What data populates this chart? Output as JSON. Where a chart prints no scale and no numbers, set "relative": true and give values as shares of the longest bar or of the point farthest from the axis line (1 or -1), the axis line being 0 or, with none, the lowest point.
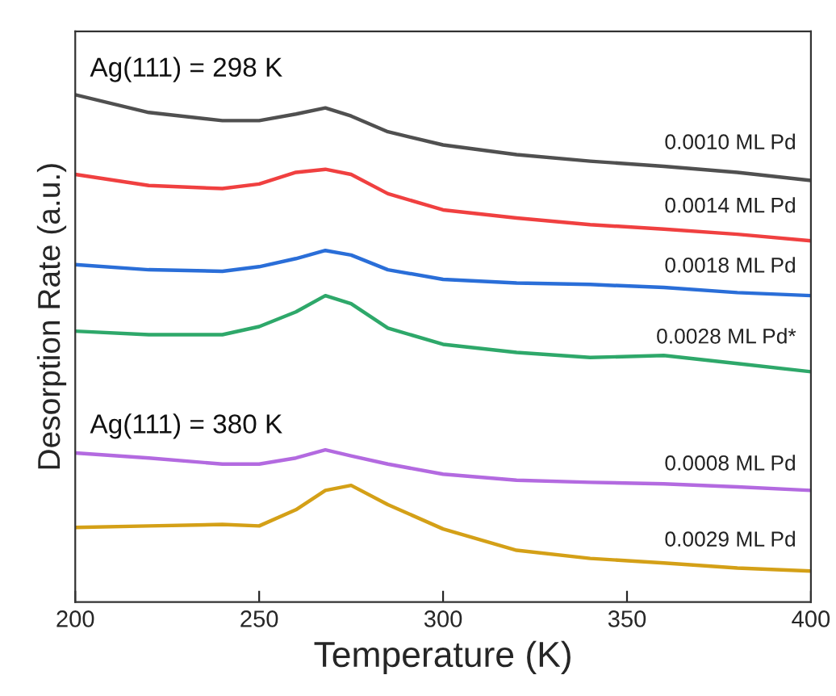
{
  "chart_data": {
    "type": "line",
    "relative": true,
    "xlabel": "Temperature (K)",
    "ylabel": "Desorption Rate (a.u.)",
    "x": [
      200,
      220,
      240,
      250,
      260,
      268,
      275,
      285,
      300,
      320,
      340,
      360,
      380,
      400
    ],
    "xlim": [
      200,
      400
    ],
    "xticks": [
      200,
      250,
      300,
      350,
      400
    ],
    "series": [
      {
        "name": "0.0010 ML Pd",
        "color": "#505050",
        "values": [
          1.0,
          0.965,
          0.949,
          0.949,
          0.962,
          0.974,
          0.958,
          0.927,
          0.901,
          0.882,
          0.869,
          0.859,
          0.847,
          0.831
        ]
      },
      {
        "name": "0.0014 ML Pd",
        "color": "#f04040",
        "values": [
          0.843,
          0.821,
          0.815,
          0.824,
          0.847,
          0.853,
          0.843,
          0.805,
          0.773,
          0.757,
          0.744,
          0.735,
          0.725,
          0.712
        ]
      },
      {
        "name": "0.0018 ML Pd",
        "color": "#2a6ed8",
        "values": [
          0.665,
          0.655,
          0.652,
          0.661,
          0.677,
          0.693,
          0.684,
          0.655,
          0.636,
          0.629,
          0.626,
          0.62,
          0.61,
          0.604
        ]
      },
      {
        "name": "0.0028 ML Pd*",
        "color": "#2ea86a",
        "values": [
          0.534,
          0.527,
          0.527,
          0.543,
          0.572,
          0.604,
          0.588,
          0.54,
          0.508,
          0.492,
          0.482,
          0.486,
          0.47,
          0.454
        ]
      },
      {
        "name": "0.0008 ML Pd",
        "color": "#b36ae0",
        "values": [
          0.294,
          0.284,
          0.272,
          0.272,
          0.284,
          0.3,
          0.288,
          0.272,
          0.252,
          0.24,
          0.236,
          0.233,
          0.227,
          0.22
        ]
      },
      {
        "name": "0.0029 ML Pd",
        "color": "#d4a017",
        "values": [
          0.147,
          0.15,
          0.153,
          0.15,
          0.182,
          0.22,
          0.23,
          0.192,
          0.144,
          0.102,
          0.086,
          0.077,
          0.067,
          0.061
        ]
      }
    ],
    "annotations": [
      "Ag(111) = 298 K",
      "Ag(111) = 380 K"
    ],
    "grid": false,
    "legend": false,
    "marker": "none",
    "line_style": "solid"
  }
}
